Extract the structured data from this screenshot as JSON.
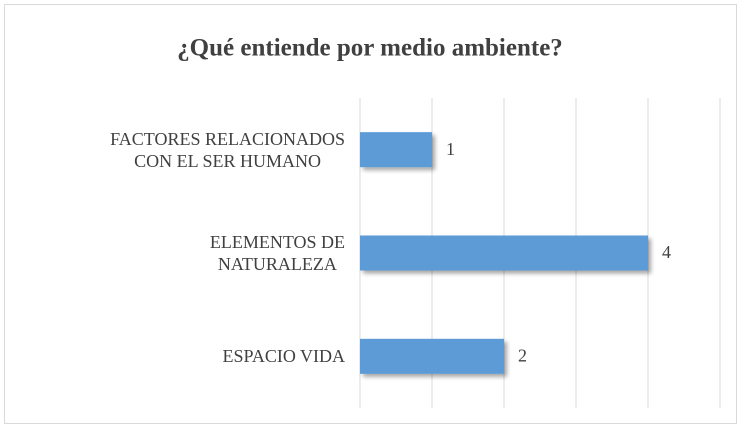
{
  "chart_data": {
    "type": "bar",
    "orientation": "horizontal",
    "title": "¿Qué entiende por medio ambiente?",
    "categories": [
      "FACTORES RELACIONADOS\nCON EL SER HUMANO",
      "ELEMENTOS DE\nNATURALEZA",
      "ESPACIO VIDA"
    ],
    "values": [
      1,
      4,
      2
    ],
    "color": "#5b9bd5",
    "xlim": [
      0,
      5
    ],
    "xticks": [
      0,
      1,
      2,
      3,
      4,
      5
    ],
    "grid": true
  }
}
